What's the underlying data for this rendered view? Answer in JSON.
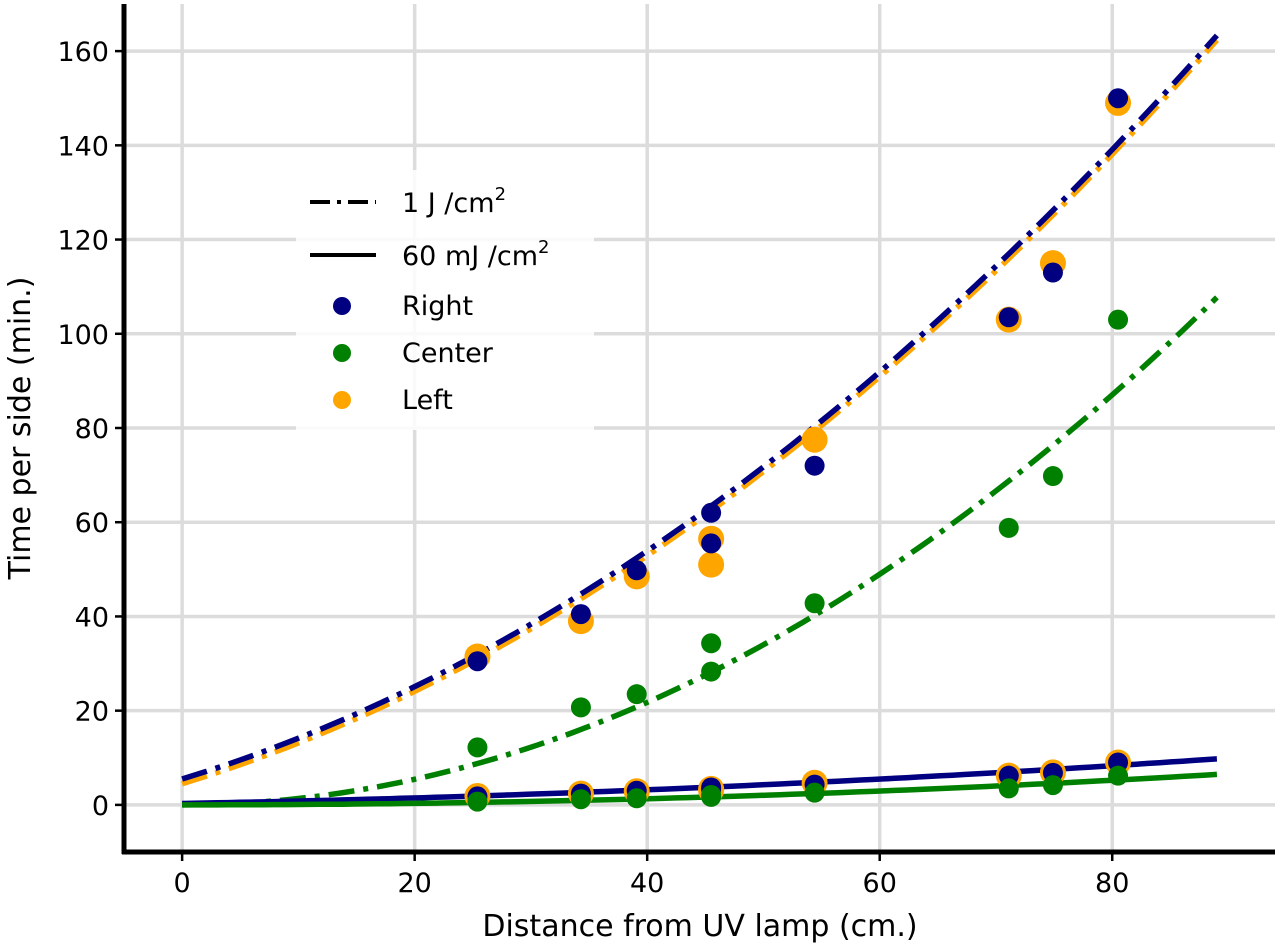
{
  "chart_data": {
    "type": "scatter",
    "xlabel": "Distance from UV lamp (cm.)",
    "ylabel": "Time per side (min.)",
    "xlim": [
      -5,
      94
    ],
    "ylim": [
      -10,
      170
    ],
    "xticks": [
      0,
      20,
      40,
      60,
      80
    ],
    "yticks": [
      0,
      20,
      40,
      60,
      80,
      100,
      120,
      140,
      160
    ],
    "grid": true,
    "legend_position": "upper-left",
    "legend": [
      {
        "label": "1 J /cm",
        "sup": "2",
        "marker": "dashdot"
      },
      {
        "label": "60 mJ /cm",
        "sup": "2",
        "marker": "solid"
      },
      {
        "label": "Right",
        "marker": "dot",
        "color": "#000080"
      },
      {
        "label": "Center",
        "marker": "dot",
        "color": "#008000"
      },
      {
        "label": "Left",
        "marker": "dot",
        "color": "#FFA500"
      }
    ],
    "series": [
      {
        "name": "Left",
        "color": "#FFA500",
        "x": [
          25.4,
          34.3,
          39.1,
          45.5,
          45.5,
          54.4,
          71.1,
          74.9,
          80.5
        ],
        "y_1J": [
          31.5,
          39,
          48.5,
          56.5,
          51,
          77.5,
          103,
          115,
          149
        ],
        "y_60mJ": [
          1.9,
          2.4,
          2.9,
          3.4,
          3.1,
          4.7,
          6.2,
          6.9,
          9.0
        ]
      },
      {
        "name": "Right",
        "color": "#000080",
        "x": [
          25.4,
          34.3,
          39.1,
          45.5,
          45.5,
          54.4,
          71.1,
          74.9,
          80.5
        ],
        "y_1J": [
          30.5,
          40.5,
          49.8,
          62,
          55.5,
          72,
          103.5,
          113,
          150
        ],
        "y_60mJ": [
          1.8,
          2.4,
          3.0,
          3.7,
          3.3,
          4.3,
          6.2,
          6.8,
          9.0
        ]
      },
      {
        "name": "Center",
        "color": "#008000",
        "x": [
          25.4,
          34.3,
          39.1,
          45.5,
          45.5,
          54.4,
          71.1,
          74.9,
          80.5
        ],
        "y_1J": [
          12.2,
          20.7,
          23.5,
          34.3,
          28.3,
          42.8,
          58.8,
          69.8,
          103
        ],
        "y_60mJ": [
          0.7,
          1.2,
          1.4,
          2.1,
          1.7,
          2.6,
          3.5,
          4.2,
          6.2
        ]
      }
    ],
    "fits_1J": [
      {
        "name": "Left",
        "color": "#FFA500",
        "coef": [
          4.5,
          0.75,
          0.0115
        ]
      },
      {
        "name": "Right",
        "color": "#000080",
        "coef": [
          5.5,
          0.75,
          0.0115
        ]
      },
      {
        "name": "Center",
        "color": "#008000",
        "coef": [
          0,
          0,
          0.0136
        ]
      }
    ],
    "fits_60mJ": [
      {
        "name": "Right",
        "color": "#000080",
        "coef": [
          0.3,
          0.045,
          0.00069
        ]
      },
      {
        "name": "Center",
        "color": "#008000",
        "coef": [
          0,
          0,
          0.000816
        ]
      }
    ],
    "fit_xmax": 89
  }
}
